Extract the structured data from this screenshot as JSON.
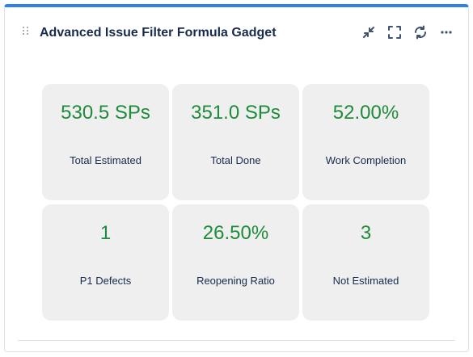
{
  "gadget": {
    "title": "Advanced Issue Filter Formula Gadget",
    "accent_color": "#2f80ed",
    "value_color": "#1e8c3a",
    "actions": [
      {
        "name": "minimize-icon"
      },
      {
        "name": "fullscreen-icon"
      },
      {
        "name": "refresh-icon"
      },
      {
        "name": "more-options-icon"
      }
    ]
  },
  "tiles": [
    {
      "value": "530.5 SPs",
      "label": "Total Estimated"
    },
    {
      "value": "351.0 SPs",
      "label": "Total Done"
    },
    {
      "value": "52.00%",
      "label": "Work Completion"
    },
    {
      "value": "1",
      "label": "P1 Defects"
    },
    {
      "value": "26.50%",
      "label": "Reopening Ratio"
    },
    {
      "value": "3",
      "label": "Not Estimated"
    }
  ]
}
